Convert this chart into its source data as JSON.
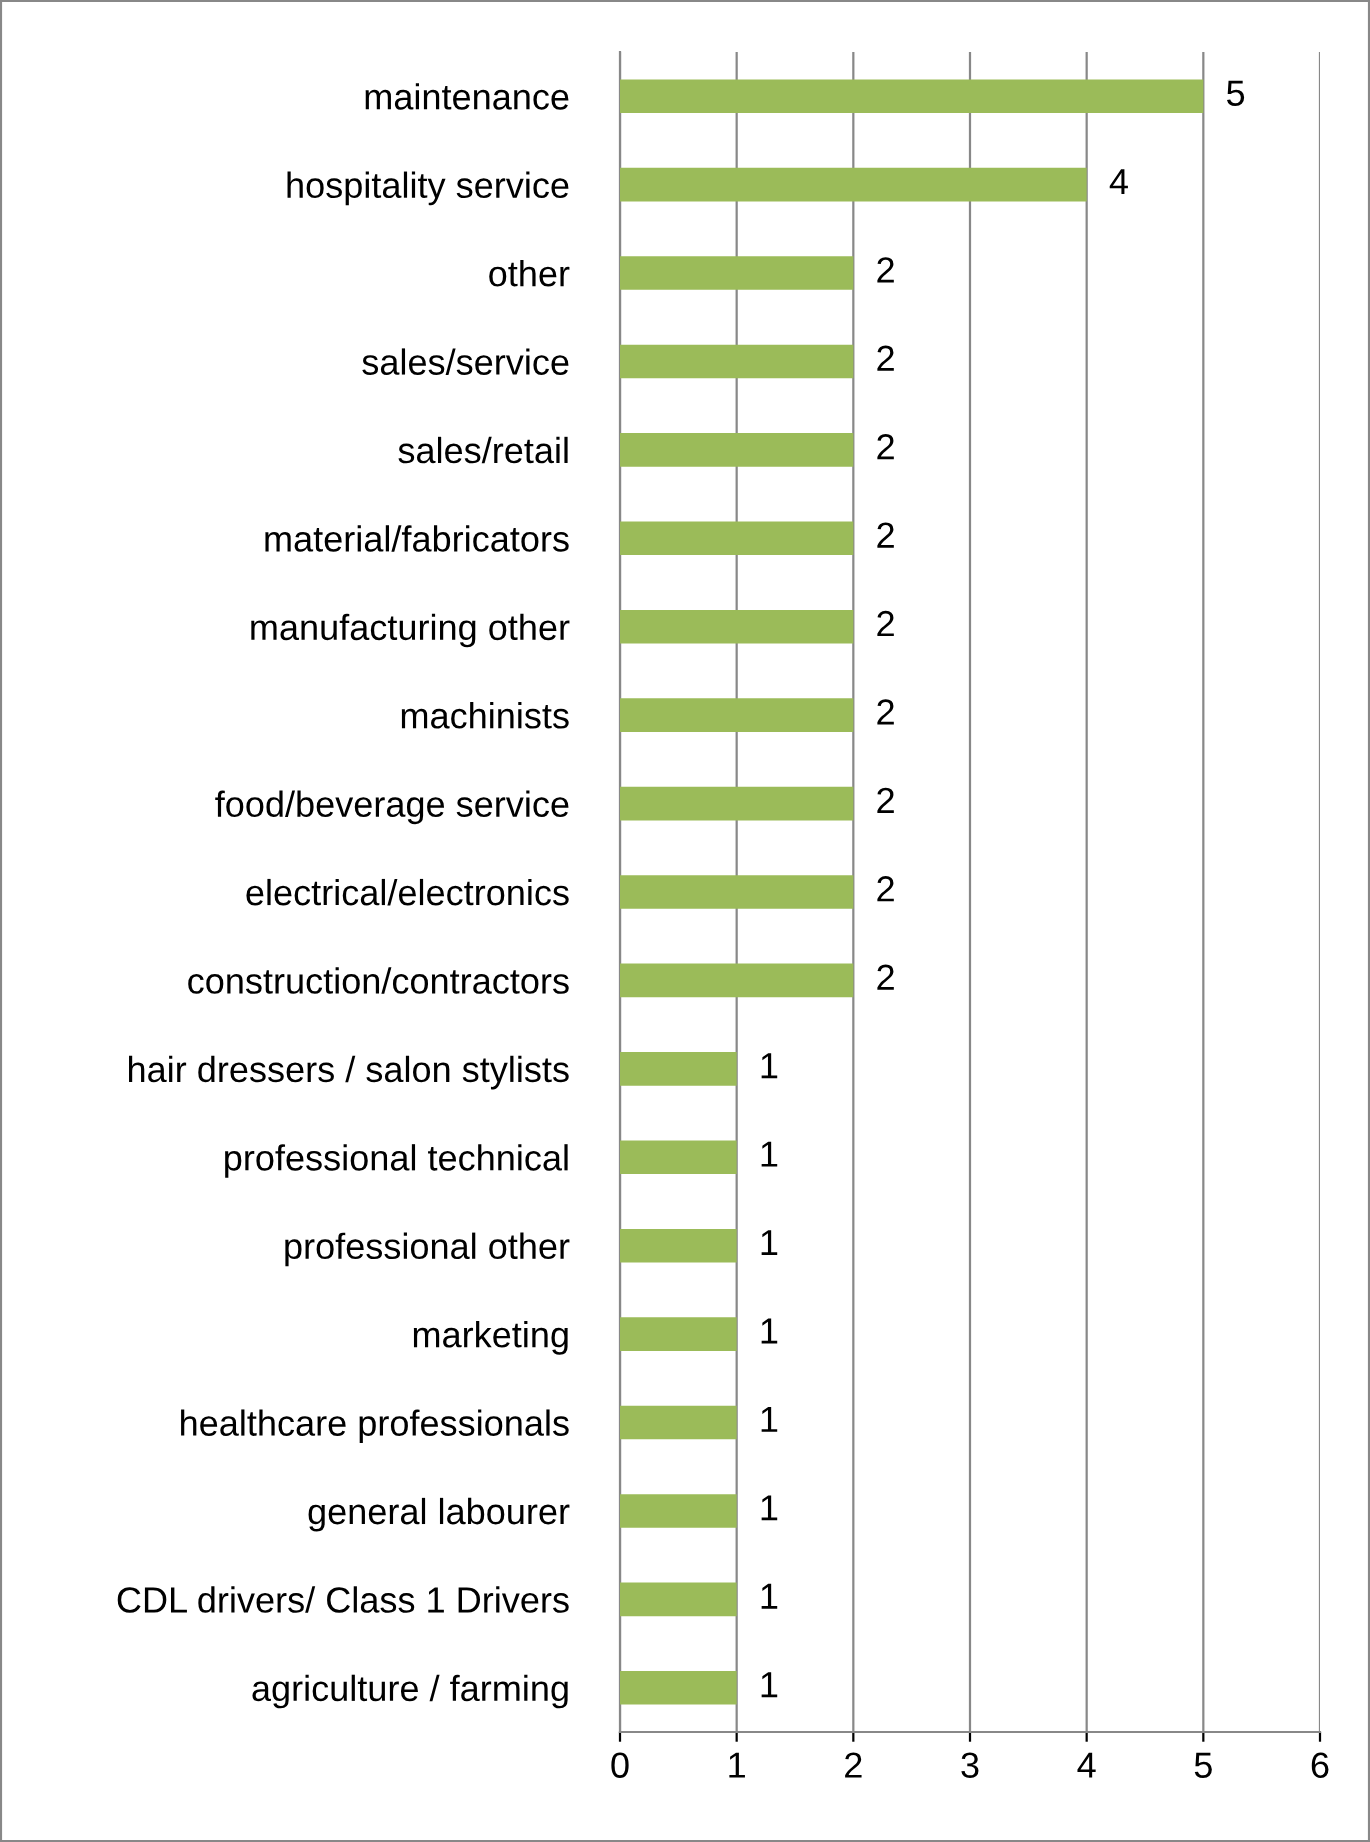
{
  "chart_data": {
    "type": "bar",
    "orientation": "horizontal",
    "categories": [
      "maintenance",
      "hospitality service",
      "other",
      "sales/service",
      "sales/retail",
      "material/fabricators",
      "manufacturing other",
      "machinists",
      "food/beverage service",
      "electrical/electronics",
      "construction/contractors",
      "hair dressers / salon stylists",
      "professional technical",
      "professional other",
      "marketing",
      "healthcare professionals",
      "general labourer",
      "CDL drivers/ Class 1 Drivers",
      "agriculture / farming"
    ],
    "values": [
      5,
      4,
      2,
      2,
      2,
      2,
      2,
      2,
      2,
      2,
      2,
      1,
      1,
      1,
      1,
      1,
      1,
      1,
      1
    ],
    "color": "#9bbb59",
    "xlim": [
      0,
      6
    ],
    "xticks": [
      0,
      1,
      2,
      3,
      4,
      5,
      6
    ],
    "grid": "x",
    "data_labels": true
  }
}
